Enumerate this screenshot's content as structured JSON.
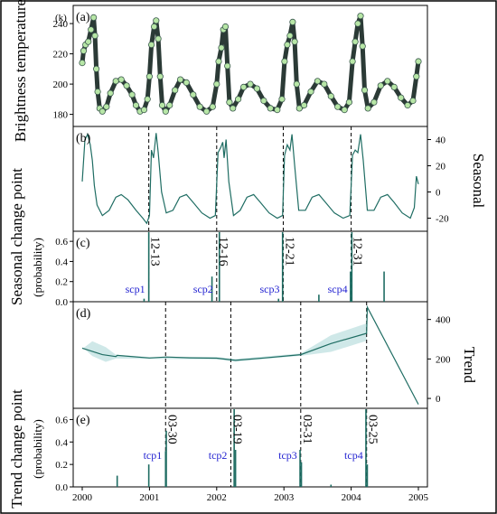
{
  "colors": {
    "line": "#1f6d63",
    "line_dark": "#2b3a36",
    "marker_fill": "#b7e6a6",
    "band": "#cfe8e8",
    "label_blue": "#1f1fd0",
    "frame": "#000000"
  },
  "chart_data": [
    {
      "panel": "a",
      "type": "scatter",
      "tag": "(a)",
      "ylabel": "Brightness temperature",
      "unit": "(k)",
      "yticks": [
        180,
        200,
        220,
        240
      ],
      "ylim": [
        172,
        252
      ],
      "points": [
        [
          2000.0,
          214
        ],
        [
          2000.02,
          222
        ],
        [
          2000.05,
          226
        ],
        [
          2000.09,
          228
        ],
        [
          2000.13,
          236
        ],
        [
          2000.17,
          244
        ],
        [
          2000.19,
          232
        ],
        [
          2000.21,
          210
        ],
        [
          2000.23,
          195
        ],
        [
          2000.26,
          184
        ],
        [
          2000.3,
          182
        ],
        [
          2000.36,
          185
        ],
        [
          2000.42,
          194
        ],
        [
          2000.5,
          202
        ],
        [
          2000.58,
          203
        ],
        [
          2000.66,
          199
        ],
        [
          2000.74,
          193
        ],
        [
          2000.8,
          186
        ],
        [
          2000.86,
          182
        ],
        [
          2000.92,
          183
        ],
        [
          2000.97,
          190
        ],
        [
          2001.0,
          205
        ],
        [
          2001.03,
          226
        ],
        [
          2001.07,
          238
        ],
        [
          2001.1,
          242
        ],
        [
          2001.13,
          230
        ],
        [
          2001.16,
          205
        ],
        [
          2001.19,
          186
        ],
        [
          2001.24,
          182
        ],
        [
          2001.3,
          186
        ],
        [
          2001.38,
          196
        ],
        [
          2001.46,
          203
        ],
        [
          2001.55,
          201
        ],
        [
          2001.65,
          193
        ],
        [
          2001.75,
          185
        ],
        [
          2001.85,
          182
        ],
        [
          2001.94,
          185
        ],
        [
          2002.0,
          200
        ],
        [
          2002.03,
          215
        ],
        [
          2002.07,
          224
        ],
        [
          2002.1,
          236
        ],
        [
          2002.13,
          238
        ],
        [
          2002.16,
          212
        ],
        [
          2002.19,
          188
        ],
        [
          2002.24,
          184
        ],
        [
          2002.32,
          190
        ],
        [
          2002.4,
          198
        ],
        [
          2002.5,
          200
        ],
        [
          2002.6,
          197
        ],
        [
          2002.7,
          189
        ],
        [
          2002.8,
          184
        ],
        [
          2002.9,
          183
        ],
        [
          2002.97,
          190
        ],
        [
          2003.01,
          215
        ],
        [
          2003.05,
          226
        ],
        [
          2003.09,
          232
        ],
        [
          2003.13,
          241
        ],
        [
          2003.16,
          228
        ],
        [
          2003.19,
          200
        ],
        [
          2003.23,
          184
        ],
        [
          2003.3,
          186
        ],
        [
          2003.4,
          195
        ],
        [
          2003.5,
          202
        ],
        [
          2003.6,
          200
        ],
        [
          2003.7,
          192
        ],
        [
          2003.8,
          185
        ],
        [
          2003.9,
          183
        ],
        [
          2003.97,
          188
        ],
        [
          2004.02,
          215
        ],
        [
          2004.06,
          228
        ],
        [
          2004.1,
          240
        ],
        [
          2004.14,
          245
        ],
        [
          2004.17,
          225
        ],
        [
          2004.2,
          196
        ],
        [
          2004.25,
          184
        ],
        [
          2004.34,
          188
        ],
        [
          2004.44,
          199
        ],
        [
          2004.54,
          202
        ],
        [
          2004.64,
          198
        ],
        [
          2004.74,
          191
        ],
        [
          2004.84,
          186
        ],
        [
          2004.92,
          189
        ],
        [
          2004.97,
          205
        ],
        [
          2005.0,
          215
        ]
      ]
    },
    {
      "panel": "b",
      "type": "line",
      "tag": "(b)",
      "ylabel": "Seasonal",
      "yticks": [
        -20,
        0,
        20,
        40
      ],
      "ylim": [
        -30,
        50
      ],
      "points": [
        [
          2000.0,
          8
        ],
        [
          2000.04,
          40
        ],
        [
          2000.08,
          44
        ],
        [
          2000.12,
          36
        ],
        [
          2000.15,
          24
        ],
        [
          2000.18,
          5
        ],
        [
          2000.22,
          -10
        ],
        [
          2000.3,
          -18
        ],
        [
          2000.4,
          -14
        ],
        [
          2000.5,
          -4
        ],
        [
          2000.58,
          -2
        ],
        [
          2000.68,
          -6
        ],
        [
          2000.8,
          -14
        ],
        [
          2000.9,
          -20
        ],
        [
          2000.96,
          -24
        ],
        [
          2001.0,
          -18
        ],
        [
          2001.03,
          32
        ],
        [
          2001.06,
          26
        ],
        [
          2001.1,
          45
        ],
        [
          2001.13,
          30
        ],
        [
          2001.18,
          0
        ],
        [
          2001.25,
          -16
        ],
        [
          2001.35,
          -14
        ],
        [
          2001.45,
          -4
        ],
        [
          2001.55,
          -2
        ],
        [
          2001.65,
          -8
        ],
        [
          2001.78,
          -16
        ],
        [
          2001.9,
          -20
        ],
        [
          2001.98,
          -18
        ],
        [
          2002.02,
          30
        ],
        [
          2002.06,
          34
        ],
        [
          2002.09,
          38
        ],
        [
          2002.11,
          26
        ],
        [
          2002.14,
          40
        ],
        [
          2002.18,
          8
        ],
        [
          2002.25,
          -18
        ],
        [
          2002.35,
          -14
        ],
        [
          2002.45,
          -4
        ],
        [
          2002.55,
          -2
        ],
        [
          2002.65,
          -8
        ],
        [
          2002.78,
          -16
        ],
        [
          2002.9,
          -20
        ],
        [
          2002.98,
          -18
        ],
        [
          2003.01,
          28
        ],
        [
          2003.05,
          36
        ],
        [
          2003.09,
          32
        ],
        [
          2003.12,
          44
        ],
        [
          2003.16,
          20
        ],
        [
          2003.22,
          -14
        ],
        [
          2003.32,
          -14
        ],
        [
          2003.42,
          -4
        ],
        [
          2003.52,
          -2
        ],
        [
          2003.62,
          -8
        ],
        [
          2003.75,
          -16
        ],
        [
          2003.88,
          -20
        ],
        [
          2003.98,
          -18
        ],
        [
          2004.02,
          28
        ],
        [
          2004.06,
          32
        ],
        [
          2004.1,
          30
        ],
        [
          2004.14,
          44
        ],
        [
          2004.18,
          24
        ],
        [
          2004.24,
          -14
        ],
        [
          2004.34,
          -14
        ],
        [
          2004.44,
          -4
        ],
        [
          2004.54,
          -2
        ],
        [
          2004.64,
          -8
        ],
        [
          2004.76,
          -16
        ],
        [
          2004.88,
          -20
        ],
        [
          2004.94,
          -12
        ],
        [
          2004.97,
          12
        ],
        [
          2005.0,
          6
        ]
      ]
    },
    {
      "panel": "c",
      "type": "bar",
      "tag": "(c)",
      "ylabel": "Seasonal change point",
      "ylabel2": "(probability)",
      "yticks": [
        0.0,
        0.2,
        0.4,
        0.6
      ],
      "ylim": [
        0,
        0.7
      ],
      "spikes": [
        [
          2000.99,
          0.75
        ],
        [
          2001.93,
          0.25
        ],
        [
          2002.04,
          0.72
        ],
        [
          2002.98,
          0.72
        ],
        [
          2003.52,
          0.07
        ],
        [
          2003.99,
          0.3
        ],
        [
          2004.01,
          0.72
        ],
        [
          2004.49,
          0.3
        ],
        [
          2000.92,
          0.03
        ],
        [
          2002.92,
          0.03
        ]
      ],
      "changepoints": [
        {
          "id": "scp1",
          "x": 2000.99,
          "date": "12-13"
        },
        {
          "id": "scp2",
          "x": 2002.0,
          "date": "12-16"
        },
        {
          "id": "scp3",
          "x": 2002.99,
          "date": "12-21"
        },
        {
          "id": "scp4",
          "x": 2004.0,
          "date": "12-31"
        }
      ]
    },
    {
      "panel": "d",
      "type": "line",
      "tag": "(d)",
      "ylabel": "Trend",
      "yticks": [
        0,
        200,
        400
      ],
      "ylim": [
        -50,
        490
      ],
      "points": [
        [
          2000.0,
          255
        ],
        [
          2000.3,
          222
        ],
        [
          2000.5,
          212
        ],
        [
          2000.52,
          218
        ],
        [
          2001.0,
          205
        ],
        [
          2001.25,
          210
        ],
        [
          2001.6,
          206
        ],
        [
          2002.0,
          204
        ],
        [
          2002.28,
          193
        ],
        [
          2002.7,
          205
        ],
        [
          2003.25,
          222
        ],
        [
          2003.7,
          278
        ],
        [
          2004.23,
          330
        ],
        [
          2004.24,
          462
        ],
        [
          2005.0,
          -30
        ]
      ],
      "band_upper": [
        [
          2000.0,
          250
        ],
        [
          2000.15,
          290
        ],
        [
          2000.35,
          260
        ],
        [
          2000.5,
          222
        ],
        [
          2001.0,
          210
        ],
        [
          2002.0,
          210
        ],
        [
          2002.28,
          200
        ],
        [
          2003.25,
          228
        ],
        [
          2003.7,
          320
        ],
        [
          2004.23,
          380
        ]
      ],
      "band_lower": [
        [
          2000.0,
          260
        ],
        [
          2000.15,
          215
        ],
        [
          2000.35,
          185
        ],
        [
          2000.5,
          202
        ],
        [
          2001.0,
          200
        ],
        [
          2002.0,
          198
        ],
        [
          2002.28,
          186
        ],
        [
          2003.25,
          216
        ],
        [
          2003.7,
          236
        ],
        [
          2004.23,
          292
        ]
      ]
    },
    {
      "panel": "e",
      "type": "bar",
      "tag": "(e)",
      "ylabel": "Trend change point",
      "ylabel2": "(probability)",
      "yticks": [
        0.0,
        0.2,
        0.4,
        0.6
      ],
      "ylim": [
        0,
        0.7
      ],
      "xlabel": "",
      "xticks": [
        2000,
        2001,
        2002,
        2003,
        2004,
        2005
      ],
      "spikes": [
        [
          2000.52,
          0.1
        ],
        [
          2000.99,
          0.2
        ],
        [
          2001.24,
          0.32
        ],
        [
          2001.25,
          0.5
        ],
        [
          2002.26,
          0.75
        ],
        [
          2002.28,
          0.33
        ],
        [
          2003.24,
          0.33
        ],
        [
          2003.26,
          0.22
        ],
        [
          2004.22,
          0.72
        ],
        [
          2004.24,
          0.2
        ],
        [
          2003.7,
          0.02
        ]
      ],
      "changepoints": [
        {
          "id": "tcp1",
          "x": 2001.24,
          "date": "03-30"
        },
        {
          "id": "tcp2",
          "x": 2002.21,
          "date": "03-19"
        },
        {
          "id": "tcp3",
          "x": 2003.25,
          "date": "03-31"
        },
        {
          "id": "tcp4",
          "x": 2004.23,
          "date": "03-25"
        }
      ]
    }
  ]
}
